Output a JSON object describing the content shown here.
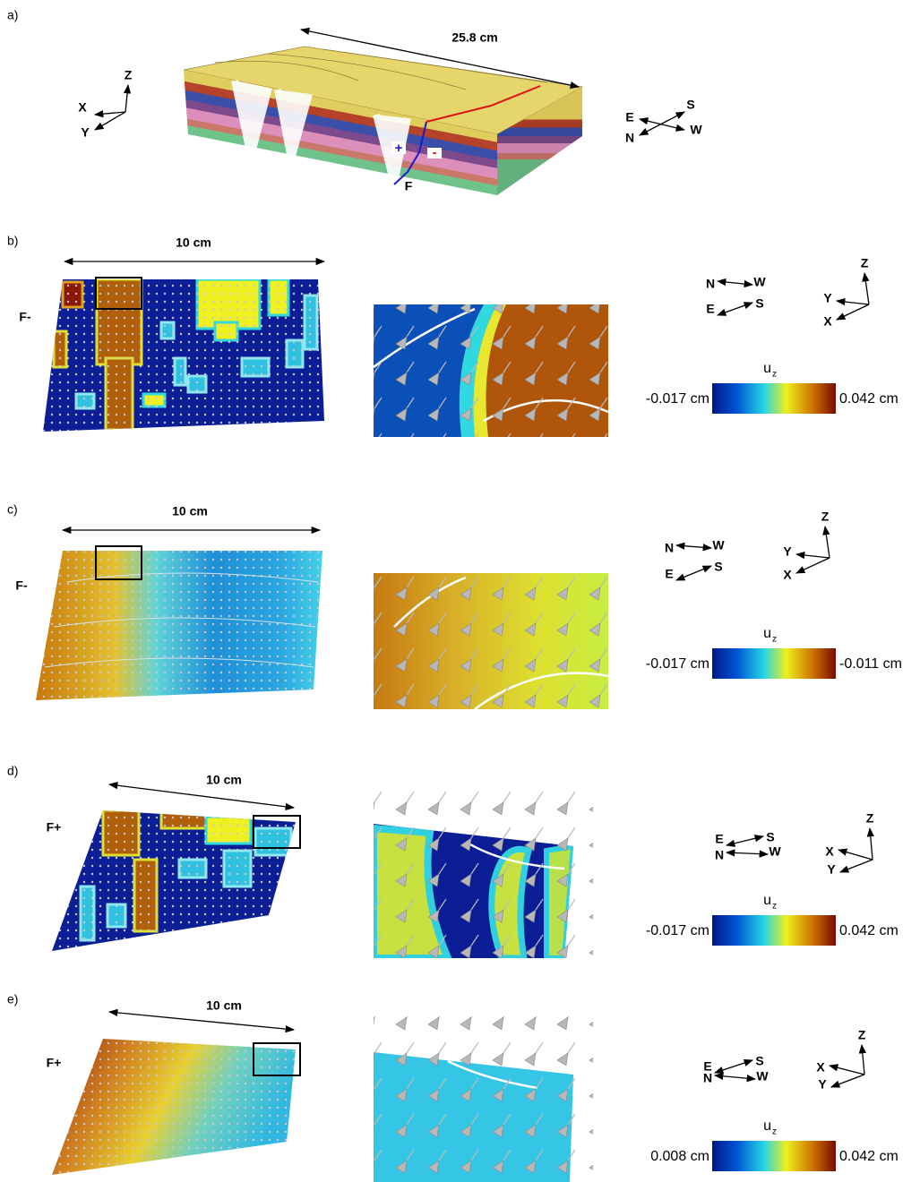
{
  "panels": [
    {
      "label": "a)",
      "dimension": "25.8 cm",
      "axes": {
        "x": "X",
        "y": "Y",
        "z": "Z"
      },
      "compass": {
        "n": "N",
        "s": "S",
        "e": "E",
        "w": "W"
      },
      "fault": "F",
      "hanging_wall": "+",
      "footwall": "-"
    },
    {
      "label": "b)",
      "dimension": "10 cm",
      "fault_side": "F-",
      "axes": {
        "x": "X",
        "y": "Y",
        "z": "Z"
      },
      "compass": {
        "n": "N",
        "s": "S",
        "e": "E",
        "w": "W"
      },
      "colorbar": {
        "quantity": "u",
        "subscript": "z",
        "min": "-0.017 cm",
        "max": "0.042 cm"
      }
    },
    {
      "label": "c)",
      "dimension": "10 cm",
      "fault_side": "F-",
      "axes": {
        "x": "X",
        "y": "Y",
        "z": "Z"
      },
      "compass": {
        "n": "N",
        "s": "S",
        "e": "E",
        "w": "W"
      },
      "colorbar": {
        "quantity": "u",
        "subscript": "z",
        "min": "-0.017 cm",
        "max": "-0.011 cm"
      }
    },
    {
      "label": "d)",
      "dimension": "10 cm",
      "fault_side": "F+",
      "axes": {
        "x": "X",
        "y": "Y",
        "z": "Z"
      },
      "compass": {
        "n": "N",
        "s": "S",
        "e": "E",
        "w": "W"
      },
      "colorbar": {
        "quantity": "u",
        "subscript": "z",
        "min": "-0.017 cm",
        "max": "0.042 cm"
      }
    },
    {
      "label": "e)",
      "dimension": "10 cm",
      "fault_side": "F+",
      "axes": {
        "x": "X",
        "y": "Y",
        "z": "Z"
      },
      "compass": {
        "n": "N",
        "s": "S",
        "e": "E",
        "w": "W"
      },
      "colorbar": {
        "quantity": "u",
        "subscript": "z",
        "min": "0.008 cm",
        "max": "0.042 cm"
      }
    }
  ]
}
